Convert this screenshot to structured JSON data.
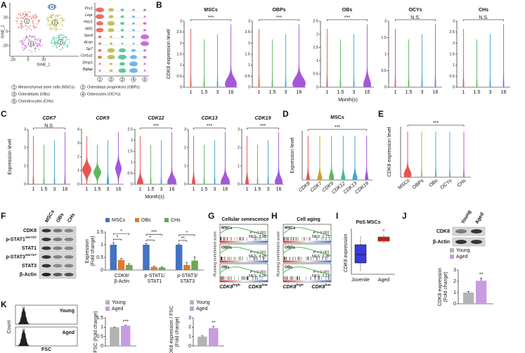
{
  "A": {
    "label": "A",
    "tsne_x": "tSNE_1",
    "tsne_y": "tSNE_2",
    "tsne_xticks": [
      -20,
      0,
      20
    ],
    "tsne_yticks": [
      -20,
      0,
      20
    ],
    "clusters": [
      "1",
      "2",
      "3",
      "4",
      "5"
    ],
    "cluster_colors": [
      "#e8554e",
      "#b5b83a",
      "#3fbf8f",
      "#5aa9e6",
      "#c353d6"
    ],
    "genes": [
      "Prx1",
      "Lepr",
      "Hey1",
      "Wif1",
      "Sox9",
      "Acan",
      "Sp7",
      "Col1a1",
      "Dmp1",
      "Bglap"
    ],
    "legend": [
      "Mesenchymal stem cells (MSCs)",
      "Osteoblast progenitors (OBPs)",
      "Osteoblasts (OBs)",
      "Osteocytes (OCYs)",
      "Chondrocytes (CHs)"
    ]
  },
  "B": {
    "label": "B",
    "ylabel": "CDK8 expression level",
    "xlabel": "Month(s)",
    "months": [
      "1",
      "1.5",
      "3",
      "16"
    ],
    "plots": [
      {
        "title": "MSCs",
        "sig": "***",
        "ylim": [
          0,
          3
        ],
        "yticks": [
          0,
          0.5,
          1,
          1.5,
          2,
          2.5,
          3
        ]
      },
      {
        "title": "OBPs",
        "sig": "***",
        "ylim": [
          0,
          3
        ],
        "yticks": [
          0,
          0.5,
          1,
          1.5,
          2,
          2.5,
          3
        ]
      },
      {
        "title": "OBs",
        "sig": "***",
        "ylim": [
          0,
          2.5
        ],
        "yticks": [
          0,
          0.5,
          1,
          1.5,
          2,
          2.5
        ]
      },
      {
        "title": "OCYs",
        "sig": "N.S.",
        "ylim": [
          0,
          2
        ],
        "yticks": [
          0,
          0.5,
          1,
          1.5,
          2
        ]
      },
      {
        "title": "CHs",
        "sig": "N.S.",
        "ylim": [
          0,
          3
        ],
        "yticks": [
          0,
          0.5,
          1,
          1.5,
          2,
          2.5,
          3
        ]
      }
    ]
  },
  "C": {
    "label": "C",
    "ylabel": "Expression level",
    "xlabel": "Month(s)",
    "months": [
      "1",
      "1.5",
      "3",
      "16"
    ],
    "plots": [
      {
        "title": "CDK7",
        "sig": "N.S.",
        "ylim": [
          0,
          3
        ],
        "yticks": [
          0,
          1,
          2,
          3
        ]
      },
      {
        "title": "CDK9",
        "ylim": [
          0,
          4
        ],
        "yticks": [
          0,
          1,
          2,
          3,
          4
        ]
      },
      {
        "title": "CDK12",
        "sig": "***",
        "ylim": [
          0,
          2.5
        ],
        "yticks": [
          0,
          0.5,
          1,
          1.5,
          2,
          2.5
        ]
      },
      {
        "title": "CDK13",
        "sig": "***",
        "ylim": [
          0,
          3
        ],
        "yticks": [
          0,
          1,
          2,
          3
        ]
      },
      {
        "title": "CDK19",
        "sig": "***",
        "ylim": [
          0,
          3
        ],
        "yticks": [
          0,
          1,
          2,
          3
        ]
      }
    ]
  },
  "D": {
    "label": "D",
    "title": "MSCs",
    "ylabel": "Expression level",
    "categories": [
      "CDK8",
      "CDK7",
      "CDK9",
      "CDK12",
      "CDK13",
      "CDK19"
    ],
    "sig": "***"
  },
  "E": {
    "label": "E",
    "ylabel": "CDK8 expression level",
    "categories": [
      "MSCs",
      "OBPs",
      "OBs",
      "OCYs",
      "CHs"
    ],
    "sig": "***"
  },
  "F": {
    "label": "F",
    "blot_headers": [
      "MSCs",
      "OBs",
      "CHs"
    ],
    "blot_rows": [
      {
        "name": "CDK8"
      },
      {
        "name": "p-STAT1",
        "sup": "Ser727"
      },
      {
        "name": "STAT1"
      },
      {
        "name": "p-STAT3",
        "sup": "Ser727"
      },
      {
        "name": "STAT3"
      },
      {
        "name": "β-Actin"
      }
    ],
    "chart": {
      "type": "bar",
      "ylabel": [
        "Expression",
        "(Fold change)"
      ],
      "categories": [
        [
          "CDK8/",
          "β-Actin"
        ],
        [
          "p-STAT1/",
          "STAT1"
        ],
        [
          "p-STAT3/",
          "STAT3"
        ]
      ],
      "series": [
        {
          "name": "MSCs",
          "color": "#4472c4",
          "values": [
            1,
            1,
            1
          ],
          "errors": [
            0.08,
            0.05,
            0.03
          ]
        },
        {
          "name": "OBs",
          "color": "#e07b28",
          "values": [
            0.4,
            0.12,
            0.2
          ],
          "errors": [
            0.05,
            0.03,
            0.1
          ]
        },
        {
          "name": "CHs",
          "color": "#6aa84f",
          "values": [
            0.2,
            0.1,
            0.37
          ],
          "errors": [
            0.05,
            0.02,
            0.15
          ]
        }
      ],
      "ylim": [
        0,
        1.5
      ],
      "yticks": [
        0,
        0.5,
        1,
        1.5
      ],
      "sig": [
        [
          "*",
          "*"
        ],
        [
          "***",
          "*"
        ],
        [
          "*",
          "**"
        ]
      ]
    }
  },
  "G": {
    "label": "G",
    "title": "Cellular senescence",
    "ylabel": "Running enrichment score",
    "rows": [
      {
        "name": "MSCs",
        "p": "P < 0.001",
        "nes": "NES: 3.98"
      },
      {
        "name": "OBPs",
        "p": "P < 0.001",
        "nes": "NES: 4.25"
      },
      {
        "name": "OBs",
        "p": "P < 0.001",
        "nes": "NES: 4.26"
      }
    ],
    "high": {
      "name": "CDK8",
      "sup": "high"
    },
    "low": {
      "name": "CDK8",
      "sup": "low"
    }
  },
  "H": {
    "label": "H",
    "title": "Cell aging",
    "ylabel": "Running enrichment score",
    "rows": [
      {
        "name": "MSCs",
        "p": "P < 0.001",
        "nes": "NES: 2.77"
      },
      {
        "name": "OBPs",
        "p": "P < 0.001",
        "nes": "NES: 3.39"
      },
      {
        "name": "OBs",
        "p": "P < 0.001",
        "nes": "NES: 3.13"
      }
    ],
    "high": {
      "name": "CDK8",
      "sup": "high"
    },
    "low": {
      "name": "CDK8",
      "sup": "low"
    }
  },
  "I": {
    "label": "I",
    "title": "PαS MSCs",
    "ylabel": "CDK8 expression",
    "categories": [
      "Juvenile",
      "Aged"
    ],
    "sig": "*"
  },
  "J": {
    "label": "J",
    "blot_headers": [
      "Young",
      "Aged"
    ],
    "blot_rows": [
      "CDK8",
      "β-Actin"
    ],
    "chart": {
      "type": "bar",
      "ylabel": [
        "CDK8 expression",
        "(Fold change)"
      ],
      "series": [
        {
          "name": "Young",
          "color": "#b3b3b3",
          "values": [
            1
          ],
          "errors": [
            0.1
          ]
        },
        {
          "name": "Aged",
          "color": "#c79ce0",
          "values": [
            2.05
          ],
          "errors": [
            0.22
          ]
        }
      ],
      "ylim": [
        0,
        3
      ],
      "yticks": [
        0,
        1,
        2,
        3
      ],
      "sig": "**"
    }
  },
  "K": {
    "label": "K",
    "hist_labels": [
      "Young",
      "Aged"
    ],
    "hist_ylabel": "Count",
    "hist_xlabel": "FSC",
    "charts": [
      {
        "type": "bar",
        "ylabel": [
          "FSC (Fold change)"
        ],
        "series": [
          {
            "name": "Young",
            "color": "#b3b3b3",
            "values": [
              1
            ],
            "errors": [
              0.01
            ]
          },
          {
            "name": "Aged",
            "color": "#c79ce0",
            "values": [
              1.08
            ],
            "errors": [
              0.02
            ]
          }
        ],
        "ylim": [
          0,
          1.5
        ],
        "yticks": [
          0,
          0.5,
          1,
          1.5
        ],
        "sig": "***"
      },
      {
        "type": "bar",
        "ylabel": [
          "CDK8 expression / FSC",
          "(Fold change)"
        ],
        "series": [
          {
            "name": "Young",
            "color": "#b3b3b3",
            "values": [
              1
            ],
            "errors": [
              0.08
            ]
          },
          {
            "name": "Aged",
            "color": "#c79ce0",
            "values": [
              1.9
            ],
            "errors": [
              0.2
            ]
          }
        ],
        "ylim": [
          0,
          3
        ],
        "yticks": [
          0,
          1,
          2,
          3
        ],
        "sig": "**"
      }
    ]
  }
}
